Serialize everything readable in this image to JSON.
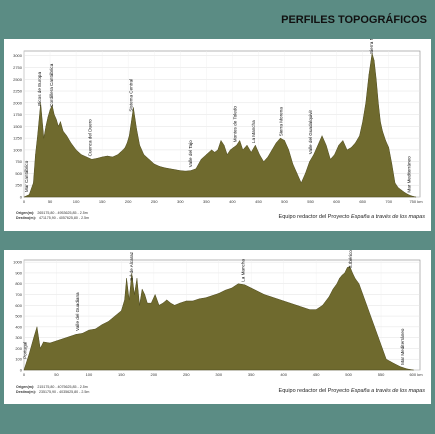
{
  "title": "PERFILES TOPOGRÁFICOS",
  "fill_color": "#6f6a2e",
  "background_color": "#5b8c84",
  "chart_data": [
    {
      "type": "area",
      "title": "",
      "xlabel": "",
      "ylabel": "",
      "x_ticks": [
        0,
        50,
        100,
        150,
        200,
        250,
        300,
        350,
        400,
        450,
        500,
        550,
        600,
        650,
        700
      ],
      "x_last_tick": "750 km",
      "xlim": [
        0,
        760
      ],
      "y_ticks": [
        0,
        250,
        500,
        750,
        1000,
        1250,
        1500,
        1750,
        2000,
        2250,
        2500,
        2750,
        3000
      ],
      "ylim": [
        0,
        3100
      ],
      "x": [
        0,
        10,
        18,
        22,
        26,
        32,
        38,
        42,
        46,
        50,
        54,
        58,
        62,
        66,
        70,
        75,
        82,
        90,
        100,
        110,
        120,
        130,
        140,
        150,
        160,
        170,
        180,
        185,
        190,
        194,
        198,
        202,
        206,
        210,
        216,
        222,
        230,
        240,
        250,
        260,
        270,
        280,
        290,
        300,
        310,
        320,
        330,
        340,
        350,
        360,
        366,
        372,
        378,
        384,
        390,
        396,
        402,
        408,
        414,
        420,
        428,
        436,
        444,
        452,
        460,
        468,
        476,
        484,
        492,
        500,
        508,
        516,
        524,
        532,
        540,
        548,
        556,
        564,
        572,
        580,
        588,
        596,
        604,
        612,
        620,
        628,
        636,
        644,
        650,
        656,
        662,
        668,
        672,
        676,
        680,
        684,
        688,
        694,
        700,
        706,
        712,
        718,
        724,
        730,
        736,
        742,
        748,
        752
      ],
      "y": [
        0,
        50,
        300,
        900,
        1300,
        2000,
        1250,
        1500,
        1700,
        1850,
        1950,
        1750,
        1650,
        1500,
        1600,
        1400,
        1300,
        1150,
        1000,
        900,
        850,
        800,
        820,
        850,
        870,
        850,
        900,
        950,
        1000,
        1050,
        1150,
        1300,
        1600,
        1900,
        1450,
        1100,
        900,
        800,
        700,
        650,
        620,
        600,
        580,
        560,
        550,
        560,
        600,
        800,
        900,
        1000,
        950,
        1000,
        1200,
        1100,
        900,
        1000,
        1050,
        1100,
        1200,
        1000,
        1100,
        950,
        1100,
        900,
        750,
        850,
        1000,
        1150,
        1250,
        1200,
        1000,
        700,
        500,
        300,
        500,
        750,
        900,
        1100,
        1300,
        1100,
        800,
        900,
        1100,
        1200,
        1000,
        1050,
        1150,
        1300,
        1600,
        2000,
        2600,
        3050,
        2900,
        2500,
        2000,
        1600,
        1400,
        1200,
        1050,
        700,
        300,
        200,
        150,
        100,
        60,
        30,
        10,
        0
      ],
      "annotations": [
        {
          "label": "Mar Cantábrico",
          "x": 8
        },
        {
          "label": "Picos de Europa",
          "x": 33
        },
        {
          "label": "Cordillera Cantábrica",
          "x": 56
        },
        {
          "label": "Cuenca del Duero",
          "x": 130
        },
        {
          "label": "Sistema Central",
          "x": 208
        },
        {
          "label": "Valle del Tajo",
          "x": 322
        },
        {
          "label": "Montes de Toledo",
          "x": 408
        },
        {
          "label": "La Mancha",
          "x": 443
        },
        {
          "label": "Sierra Morena",
          "x": 496
        },
        {
          "label": "Valle del Guadalquivir",
          "x": 553
        },
        {
          "label": "Sierra Nevada",
          "x": 670
        },
        {
          "label": "Mar Mediterráneo",
          "x": 742
        }
      ],
      "origin_label": "Origen(m):",
      "origin_value": "265175,80 - 4953625,85 - 2.5m",
      "destination_label": "Destino(m):",
      "destination_value": "471175,90 - 4057625,80 - 2.5m",
      "credit_prefix": "Equipo redactor del Proyecto ",
      "credit_italic": "España a través de los mapas"
    },
    {
      "type": "area",
      "title": "",
      "xlabel": "",
      "ylabel": "",
      "x_ticks": [
        0,
        50,
        100,
        150,
        200,
        250,
        300,
        350,
        400,
        450,
        500,
        550
      ],
      "x_last_tick": "600 km",
      "xlim": [
        0,
        610
      ],
      "y_ticks": [
        0,
        100,
        200,
        300,
        400,
        500,
        600,
        700,
        800,
        900,
        1000
      ],
      "ylim": [
        0,
        1020
      ],
      "x": [
        0,
        8,
        15,
        20,
        25,
        30,
        40,
        50,
        60,
        70,
        80,
        90,
        100,
        110,
        120,
        130,
        140,
        150,
        155,
        158,
        162,
        166,
        170,
        174,
        178,
        182,
        186,
        190,
        196,
        202,
        208,
        214,
        220,
        226,
        232,
        240,
        250,
        260,
        270,
        280,
        290,
        300,
        310,
        320,
        330,
        340,
        350,
        360,
        370,
        380,
        390,
        400,
        410,
        420,
        430,
        440,
        450,
        460,
        470,
        476,
        482,
        486,
        490,
        494,
        498,
        502,
        506,
        510,
        516,
        522,
        528,
        534,
        540,
        546,
        552,
        558,
        564,
        570,
        580,
        590,
        600
      ],
      "y": [
        0,
        150,
        300,
        400,
        200,
        260,
        250,
        270,
        290,
        310,
        330,
        340,
        370,
        380,
        420,
        450,
        500,
        550,
        650,
        850,
        650,
        900,
        700,
        850,
        600,
        750,
        700,
        620,
        620,
        700,
        600,
        620,
        650,
        620,
        600,
        620,
        640,
        640,
        660,
        670,
        690,
        710,
        740,
        760,
        800,
        790,
        760,
        730,
        700,
        680,
        660,
        640,
        620,
        600,
        580,
        560,
        560,
        600,
        680,
        750,
        800,
        850,
        880,
        900,
        950,
        960,
        900,
        850,
        800,
        700,
        600,
        500,
        400,
        300,
        200,
        100,
        80,
        60,
        30,
        10,
        0
      ],
      "annotations": [
        {
          "label": "Portugal",
          "x": 4
        },
        {
          "label": "Valle del Guadiana",
          "x": 85
        },
        {
          "label": "S.ª de Alcaraz",
          "x": 168
        },
        {
          "label": "La Mancha",
          "x": 340
        },
        {
          "label": "S.Ibérico",
          "x": 505
        },
        {
          "label": "Mar Mediterráneo",
          "x": 585
        }
      ],
      "origin_label": "Origen(m):",
      "origin_value": "215175,80 - 4075625,85 - 2.5m",
      "destination_label": "Destino(m):",
      "destination_value": "235175,90 - 4035625,80 - 2.5m",
      "credit_prefix": "Equipo redactor del Proyecto ",
      "credit_italic": "España a través de los mapas"
    }
  ]
}
